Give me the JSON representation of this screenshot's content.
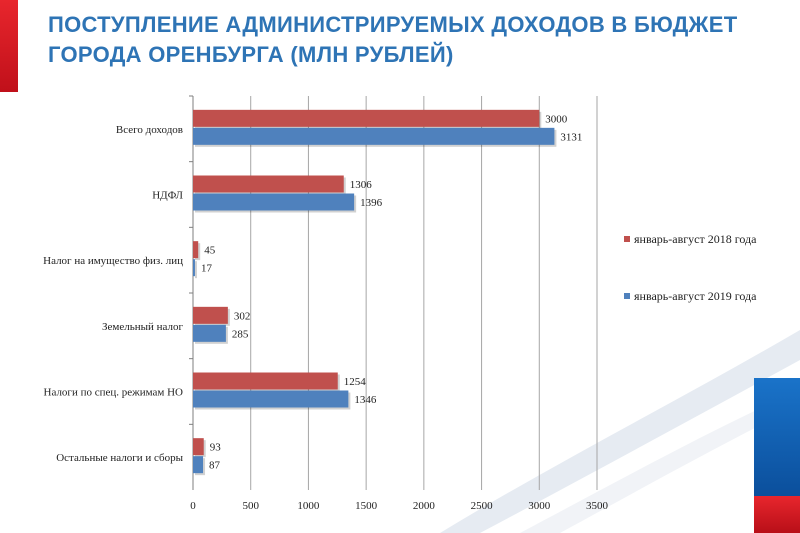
{
  "page": {
    "title": "ПОСТУПЛЕНИЕ АДМИНИСТРИРУЕМЫХ ДОХОДОВ В БЮДЖЕТ ГОРОДА ОРЕНБУРГА (МЛН РУБЛЕЙ)"
  },
  "colors": {
    "series_2018": "#c0504d",
    "series_2019": "#4f81bd",
    "title": "#2e74b5",
    "accent_red": "#e8262d",
    "accent_blue": "#1a73c9"
  },
  "chart_data": {
    "type": "bar",
    "orientation": "horizontal",
    "title": "ПОСТУПЛЕНИЕ АДМИНИСТРИРУЕМЫХ ДОХОДОВ В БЮДЖЕТ ГОРОДА ОРЕНБУРГА (МЛН РУБЛЕЙ)",
    "categories": [
      "Всего доходов",
      "НДФЛ",
      "Налог  на имущество физ. лиц",
      "Земельный  налог",
      "Налоги по спец. режимам НО",
      "Остальные  налоги и сборы"
    ],
    "series": [
      {
        "name": "январь-август 2018 года",
        "values": [
          3000,
          1306,
          45,
          302,
          1254,
          93
        ]
      },
      {
        "name": "январь-август 2019 года",
        "values": [
          3131,
          1396,
          17,
          285,
          1346,
          87
        ]
      }
    ],
    "xlim": [
      0,
      3500
    ],
    "xticks": [
      0,
      500,
      1000,
      1500,
      2000,
      2500,
      3000,
      3500
    ],
    "grid": true,
    "legend_position": "right"
  }
}
